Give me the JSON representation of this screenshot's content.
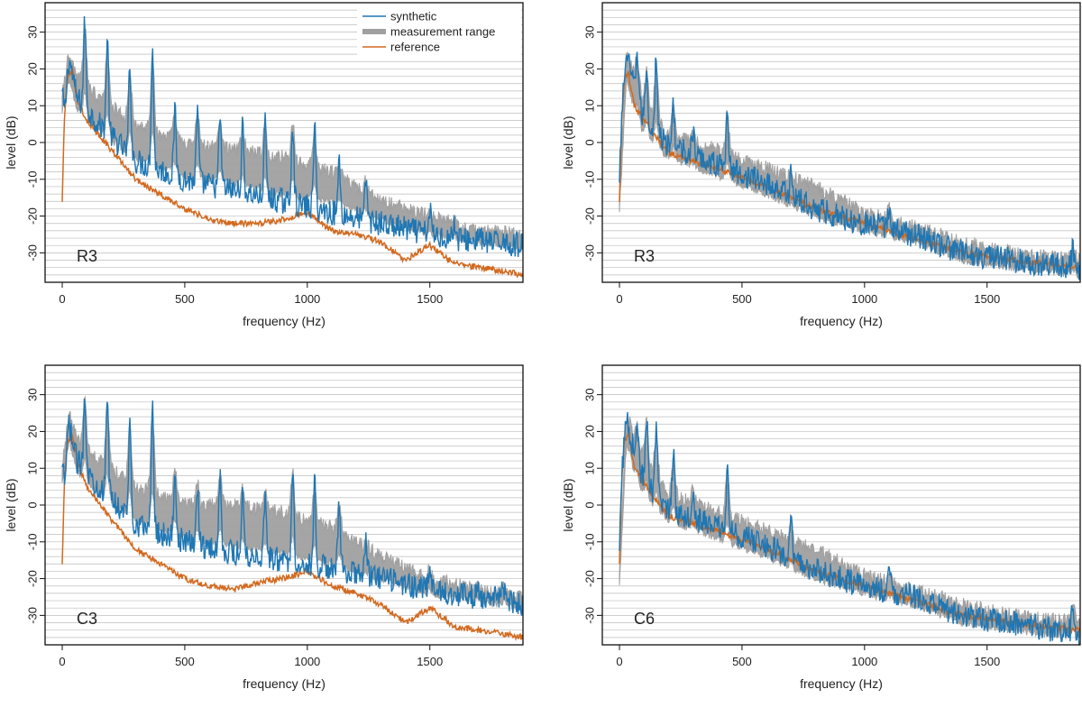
{
  "figure": {
    "legend": {
      "items": [
        {
          "label": "synthetic",
          "color": "#1f77b4",
          "style": "line"
        },
        {
          "label": "measurement range",
          "color": "#a0a0a0",
          "style": "band"
        },
        {
          "label": "reference",
          "color": "#d2691e",
          "style": "line"
        }
      ]
    }
  },
  "chart_data": [
    {
      "type": "line",
      "panel_label": "R3",
      "xlabel": "frequency (Hz)",
      "ylabel": "level (dB)",
      "xlim": [
        -70,
        1880
      ],
      "ylim": [
        -38,
        38
      ],
      "xticks": [
        0,
        500,
        1000,
        1500
      ],
      "yticks": [
        -30,
        -20,
        -10,
        0,
        10,
        20,
        30
      ],
      "grid": "horizontal",
      "fundamental_hz": 92,
      "peaks": [
        [
          28,
          22
        ],
        [
          92,
          33
        ],
        [
          184,
          28
        ],
        [
          276,
          20
        ],
        [
          368,
          26
        ],
        [
          460,
          8
        ],
        [
          552,
          8
        ],
        [
          644,
          7
        ],
        [
          736,
          4
        ],
        [
          828,
          5
        ],
        [
          940,
          6
        ],
        [
          1030,
          4
        ],
        [
          1130,
          -5
        ],
        [
          1240,
          -10
        ],
        [
          1500,
          -18
        ],
        [
          1600,
          -22
        ],
        [
          1700,
          -24
        ],
        [
          1800,
          -25
        ]
      ],
      "series": [
        {
          "name": "synthetic",
          "color": "#1f77b4",
          "x": [
            0,
            10,
            30,
            60,
            150,
            300,
            500,
            700,
            900,
            1100,
            1300,
            1500,
            1700,
            1880
          ],
          "values": [
            13,
            8,
            22,
            12,
            5,
            -5,
            -10,
            -13,
            -16,
            -19,
            -22,
            -25,
            -27,
            -28
          ]
        },
        {
          "name": "measurement range",
          "color": "#a0a0a0",
          "x": [
            0,
            30,
            60,
            150,
            300,
            500,
            700,
            900,
            1100,
            1300,
            1500,
            1700,
            1880
          ],
          "low": [
            10,
            18,
            10,
            4,
            -3,
            -8,
            -10,
            -13,
            -15,
            -20,
            -24,
            -26,
            -28
          ],
          "high": [
            14,
            24,
            18,
            12,
            5,
            0,
            -2,
            -4,
            -8,
            -16,
            -20,
            -24,
            -25
          ]
        },
        {
          "name": "reference",
          "color": "#d2691e",
          "x": [
            0,
            8,
            20,
            40,
            60,
            100,
            200,
            300,
            400,
            500,
            600,
            700,
            800,
            900,
            1000,
            1100,
            1200,
            1300,
            1400,
            1500,
            1600,
            1700,
            1800,
            1880
          ],
          "values": [
            -16,
            5,
            17,
            20,
            12,
            6,
            -2,
            -10,
            -14,
            -18,
            -21,
            -22,
            -22,
            -21,
            -19,
            -24,
            -25,
            -27,
            -32,
            -28,
            -33,
            -34,
            -35,
            -36
          ]
        }
      ]
    },
    {
      "type": "line",
      "panel_label": "R3",
      "xlabel": "frequency (Hz)",
      "ylabel": "level (dB)",
      "xlim": [
        -70,
        1880
      ],
      "ylim": [
        -38,
        38
      ],
      "xticks": [
        0,
        500,
        1000,
        1500
      ],
      "yticks": [
        -30,
        -20,
        -10,
        0,
        10,
        20,
        30
      ],
      "grid": "horizontal",
      "fundamental_hz": 72,
      "peaks": [
        [
          30,
          24
        ],
        [
          72,
          25
        ],
        [
          110,
          20
        ],
        [
          150,
          24
        ],
        [
          220,
          10
        ],
        [
          300,
          3
        ],
        [
          440,
          9
        ],
        [
          700,
          -8
        ],
        [
          1100,
          -17
        ],
        [
          1850,
          -28
        ]
      ],
      "series": [
        {
          "name": "synthetic",
          "color": "#1f77b4",
          "x": [
            0,
            10,
            30,
            60,
            100,
            200,
            400,
            600,
            800,
            1000,
            1200,
            1400,
            1600,
            1880
          ],
          "values": [
            -12,
            10,
            22,
            15,
            6,
            -1,
            -6,
            -11,
            -18,
            -22,
            -25,
            -30,
            -32,
            -34
          ]
        },
        {
          "name": "measurement range",
          "color": "#a0a0a0",
          "x": [
            0,
            30,
            60,
            100,
            200,
            400,
            600,
            800,
            1000,
            1200,
            1400,
            1600,
            1880
          ],
          "low": [
            -17,
            18,
            10,
            3,
            -3,
            -8,
            -13,
            -19,
            -23,
            -26,
            -31,
            -33,
            -35
          ],
          "high": [
            -14,
            24,
            18,
            10,
            2,
            -2,
            -7,
            -12,
            -19,
            -23,
            -27,
            -30,
            -32
          ]
        },
        {
          "name": "reference",
          "color": "#d2691e",
          "x": [
            0,
            10,
            20,
            35,
            60,
            100,
            200,
            400,
            600,
            800,
            1000,
            1200,
            1400,
            1600,
            1880
          ],
          "values": [
            -16,
            8,
            17,
            19,
            10,
            6,
            -3,
            -7,
            -12,
            -18,
            -22,
            -26,
            -30,
            -32,
            -34
          ]
        }
      ]
    },
    {
      "type": "line",
      "panel_label": "C3",
      "xlabel": "frequency (Hz)",
      "ylabel": "level (dB)",
      "xlim": [
        -70,
        1880
      ],
      "ylim": [
        -38,
        38
      ],
      "xticks": [
        0,
        500,
        1000,
        1500
      ],
      "yticks": [
        -30,
        -20,
        -10,
        0,
        10,
        20,
        30
      ],
      "grid": "horizontal",
      "fundamental_hz": 92,
      "peaks": [
        [
          28,
          22
        ],
        [
          92,
          31
        ],
        [
          184,
          28
        ],
        [
          276,
          22
        ],
        [
          368,
          28
        ],
        [
          460,
          10
        ],
        [
          552,
          6
        ],
        [
          644,
          8
        ],
        [
          736,
          5
        ],
        [
          828,
          4
        ],
        [
          940,
          10
        ],
        [
          1030,
          6
        ],
        [
          1130,
          0
        ],
        [
          1240,
          -10
        ],
        [
          1500,
          -17
        ],
        [
          1700,
          -22
        ],
        [
          1800,
          -22
        ]
      ],
      "series": [
        {
          "name": "synthetic",
          "color": "#1f77b4",
          "x": [
            0,
            10,
            30,
            60,
            150,
            300,
            500,
            700,
            900,
            1100,
            1300,
            1500,
            1700,
            1880
          ],
          "values": [
            9,
            6,
            20,
            12,
            5,
            -5,
            -10,
            -13,
            -15,
            -17,
            -20,
            -23,
            -25,
            -27
          ]
        },
        {
          "name": "measurement range",
          "color": "#a0a0a0",
          "x": [
            0,
            30,
            60,
            150,
            300,
            500,
            700,
            900,
            1100,
            1300,
            1500,
            1700,
            1880
          ],
          "low": [
            8,
            18,
            10,
            4,
            -3,
            -8,
            -10,
            -12,
            -15,
            -19,
            -23,
            -25,
            -27
          ],
          "high": [
            11,
            24,
            18,
            12,
            5,
            0,
            0,
            -2,
            -6,
            -14,
            -20,
            -23,
            -25
          ]
        },
        {
          "name": "reference",
          "color": "#d2691e",
          "x": [
            0,
            8,
            20,
            40,
            60,
            100,
            200,
            300,
            400,
            500,
            600,
            700,
            800,
            900,
            1000,
            1100,
            1200,
            1300,
            1400,
            1500,
            1600,
            1700,
            1800,
            1880
          ],
          "values": [
            -16,
            5,
            17,
            20,
            12,
            5,
            -4,
            -12,
            -16,
            -20,
            -22,
            -23,
            -21,
            -20,
            -18,
            -22,
            -24,
            -27,
            -32,
            -28,
            -33,
            -34,
            -35,
            -36
          ]
        }
      ]
    },
    {
      "type": "line",
      "panel_label": "C6",
      "xlabel": "frequency (Hz)",
      "ylabel": "level (dB)",
      "xlim": [
        -70,
        1880
      ],
      "ylim": [
        -38,
        38
      ],
      "xticks": [
        0,
        500,
        1000,
        1500
      ],
      "yticks": [
        -30,
        -20,
        -10,
        0,
        10,
        20,
        30
      ],
      "grid": "horizontal",
      "fundamental_hz": 72,
      "peaks": [
        [
          30,
          24
        ],
        [
          72,
          22
        ],
        [
          110,
          25
        ],
        [
          150,
          20
        ],
        [
          220,
          14
        ],
        [
          300,
          5
        ],
        [
          440,
          10
        ],
        [
          700,
          -5
        ],
        [
          1100,
          -18
        ],
        [
          1850,
          -27
        ]
      ],
      "series": [
        {
          "name": "synthetic",
          "color": "#1f77b4",
          "x": [
            0,
            10,
            30,
            60,
            100,
            200,
            400,
            600,
            800,
            1000,
            1200,
            1400,
            1600,
            1880
          ],
          "values": [
            -14,
            10,
            22,
            15,
            6,
            -1,
            -6,
            -11,
            -18,
            -22,
            -25,
            -30,
            -32,
            -35
          ]
        },
        {
          "name": "measurement range",
          "color": "#a0a0a0",
          "x": [
            0,
            30,
            60,
            100,
            200,
            400,
            600,
            800,
            1000,
            1200,
            1400,
            1600,
            1880
          ],
          "low": [
            -20,
            18,
            10,
            3,
            -3,
            -8,
            -13,
            -19,
            -23,
            -26,
            -31,
            -33,
            -35
          ],
          "high": [
            -17,
            24,
            18,
            12,
            3,
            -2,
            -7,
            -12,
            -19,
            -23,
            -27,
            -30,
            -32
          ]
        },
        {
          "name": "reference",
          "color": "#d2691e",
          "x": [
            0,
            10,
            20,
            35,
            60,
            100,
            200,
            400,
            600,
            800,
            1000,
            1200,
            1400,
            1600,
            1880
          ],
          "values": [
            -16,
            8,
            17,
            20,
            10,
            6,
            -3,
            -7,
            -12,
            -18,
            -22,
            -26,
            -30,
            -32,
            -34
          ]
        }
      ]
    }
  ]
}
